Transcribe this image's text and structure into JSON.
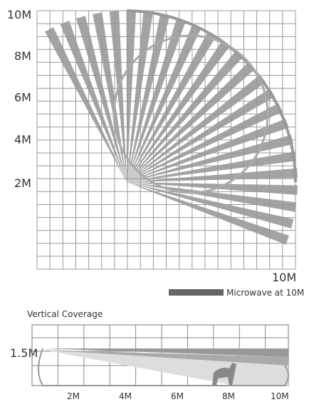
{
  "top_diagram": {
    "y_labels": [
      "10M",
      "8M",
      "6M",
      "4M",
      "2M"
    ],
    "x_label": "10M",
    "legend": "Microwave at 10M"
  },
  "bottom_diagram": {
    "title": "Vertical Coverage",
    "y_label": "1.5M",
    "x_labels": [
      "2M",
      "4M",
      "6M",
      "8M",
      "10M"
    ]
  }
}
